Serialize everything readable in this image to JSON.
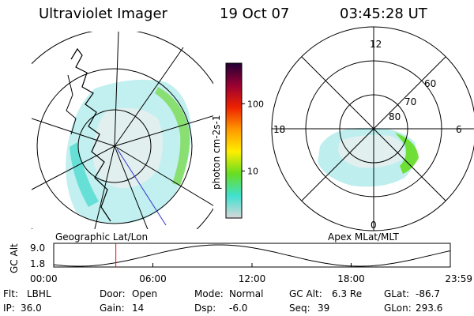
{
  "header": {
    "instrument": "Ultraviolet Imager",
    "date": "19 Oct 07",
    "time": "03:45:28 UT"
  },
  "colorbar": {
    "label": "photon cm-2s-1",
    "ticks": [
      {
        "label": "100",
        "value": 100
      },
      {
        "label": "10",
        "value": 10
      }
    ],
    "range": [
      2,
      400
    ],
    "stops": [
      "#d8d8d8",
      "#40e0d0",
      "#66dd22",
      "#ffee00",
      "#ff9900",
      "#ee2200",
      "#990033",
      "#220033"
    ]
  },
  "panels": {
    "left_label": "Geographic Lat/Lon",
    "right_label": "Apex MLat/MLT"
  },
  "polar": {
    "mlt_labels": [
      "12",
      "18",
      "6",
      "0"
    ],
    "lat_labels": [
      "60",
      "70",
      "80"
    ]
  },
  "timeline": {
    "ylabel": "GC Alt",
    "y_top": "9.0",
    "y_bottom": "1.8",
    "x_ticks": [
      "00:00",
      "06:00",
      "12:00",
      "18:00",
      "23:59"
    ],
    "marker_time_hours": 3.76,
    "marker_color": "#ff0000"
  },
  "info": {
    "filter_label": "Flt:",
    "filter_value": "LBHL",
    "door_label": "Door:",
    "door_value": "Open",
    "mode_label": "Mode:",
    "mode_value": "Normal",
    "gcalt_label": "GC Alt:",
    "gcalt_value": "6.3 Re",
    "glat_label": "GLat:",
    "glat_value": "-86.7",
    "ip_label": "IP:",
    "ip_value": "36.0",
    "gain_label": "Gain:",
    "gain_value": "14",
    "dsp_label": "Dsp:",
    "dsp_value": "-6.0",
    "seq_label": "Seq:",
    "seq_value": "39",
    "glon_label": "GLon:",
    "glon_value": "293.6"
  }
}
